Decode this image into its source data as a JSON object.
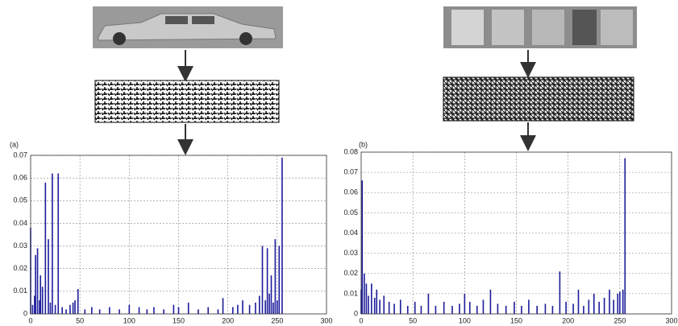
{
  "chart_data": [
    {
      "type": "bar",
      "label": "(a)",
      "color": "#1c1c9c",
      "grid": true,
      "xlim": [
        0,
        300
      ],
      "xticks": [
        0,
        50,
        100,
        150,
        200,
        250,
        300
      ],
      "ylim": [
        0,
        0.07
      ],
      "yticks": [
        0,
        0.01,
        0.02,
        0.03,
        0.04,
        0.05,
        0.06,
        0.07
      ],
      "x": [
        0,
        2,
        4,
        5,
        7,
        9,
        10,
        12,
        15,
        18,
        20,
        22,
        25,
        28,
        32,
        36,
        40,
        43,
        45,
        48,
        55,
        62,
        70,
        80,
        90,
        100,
        110,
        118,
        125,
        135,
        145,
        150,
        160,
        170,
        180,
        190,
        195,
        205,
        210,
        215,
        222,
        228,
        232,
        235,
        238,
        240,
        242,
        244,
        246,
        248,
        250,
        252,
        255
      ],
      "values": [
        0.038,
        0.004,
        0.008,
        0.026,
        0.029,
        0.006,
        0.017,
        0.012,
        0.058,
        0.033,
        0.005,
        0.062,
        0.004,
        0.062,
        0.003,
        0.002,
        0.004,
        0.005,
        0.006,
        0.011,
        0.002,
        0.003,
        0.002,
        0.003,
        0.002,
        0.004,
        0.003,
        0.002,
        0.003,
        0.002,
        0.004,
        0.003,
        0.005,
        0.002,
        0.003,
        0.002,
        0.007,
        0.003,
        0.004,
        0.006,
        0.004,
        0.005,
        0.008,
        0.03,
        0.006,
        0.029,
        0.009,
        0.017,
        0.005,
        0.033,
        0.006,
        0.03,
        0.069
      ]
    },
    {
      "type": "bar",
      "label": "(b)",
      "color": "#1c1c9c",
      "grid": true,
      "xlim": [
        0,
        300
      ],
      "xticks": [
        0,
        50,
        100,
        150,
        200,
        250,
        300
      ],
      "ylim": [
        0,
        0.08
      ],
      "yticks": [
        0,
        0.01,
        0.02,
        0.03,
        0.04,
        0.05,
        0.06,
        0.07,
        0.08
      ],
      "x": [
        0,
        1,
        3,
        5,
        7,
        10,
        13,
        15,
        18,
        22,
        27,
        32,
        38,
        45,
        52,
        58,
        65,
        72,
        80,
        88,
        95,
        100,
        105,
        112,
        118,
        125,
        132,
        140,
        148,
        155,
        162,
        170,
        178,
        185,
        192,
        198,
        205,
        210,
        215,
        220,
        225,
        230,
        235,
        240,
        244,
        248,
        250,
        253,
        255
      ],
      "values": [
        0.012,
        0.066,
        0.02,
        0.015,
        0.009,
        0.015,
        0.008,
        0.012,
        0.007,
        0.009,
        0.006,
        0.005,
        0.007,
        0.004,
        0.006,
        0.004,
        0.01,
        0.004,
        0.006,
        0.004,
        0.005,
        0.01,
        0.006,
        0.004,
        0.007,
        0.012,
        0.005,
        0.004,
        0.006,
        0.004,
        0.007,
        0.004,
        0.005,
        0.004,
        0.021,
        0.006,
        0.005,
        0.012,
        0.004,
        0.007,
        0.01,
        0.006,
        0.008,
        0.012,
        0.007,
        0.01,
        0.011,
        0.012,
        0.077
      ]
    }
  ]
}
